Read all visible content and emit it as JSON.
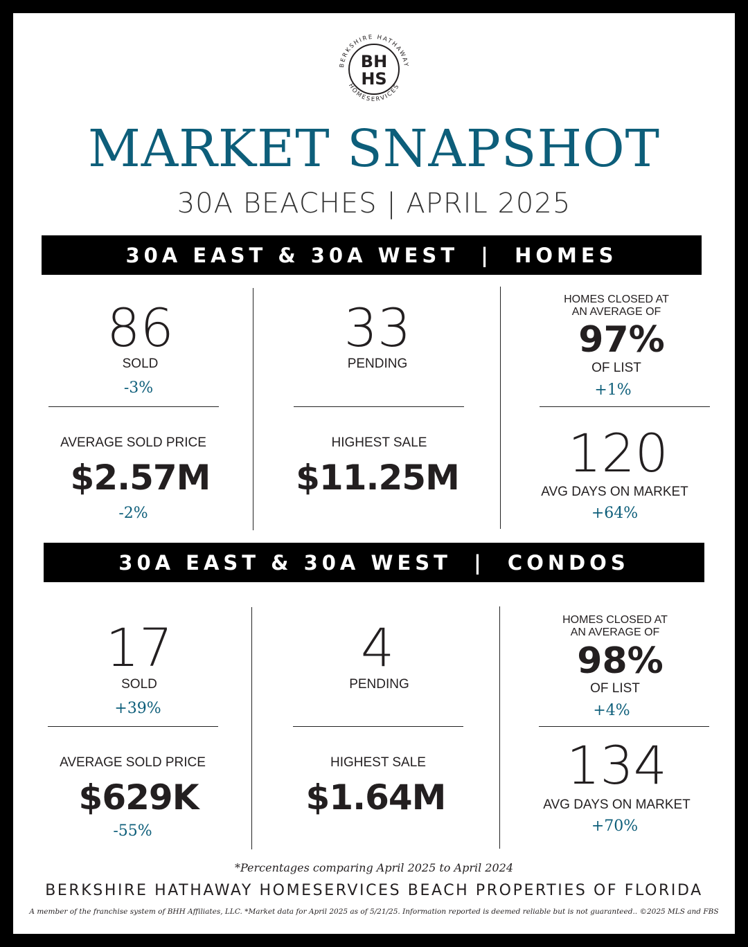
{
  "logo": {
    "mark_line1": "BH",
    "mark_line2": "HS",
    "ring_top": "BERKSHIRE HATHAWAY",
    "ring_bottom": "HOMESERVICES"
  },
  "header": {
    "title": "MARKET SNAPSHOT",
    "subtitle": "30A BEACHES | APRIL 2025"
  },
  "colors": {
    "accent": "#0d5e7a",
    "text": "#231f20",
    "banner": "#000000"
  },
  "homes": {
    "banner": "30A EAST & 30A WEST  |  HOMES",
    "sold": {
      "value": "86",
      "label": "SOLD",
      "change": "-3%"
    },
    "pending": {
      "value": "33",
      "label": "PENDING"
    },
    "list_ratio": {
      "intro_line1": "HOMES CLOSED AT",
      "intro_line2": "AN AVERAGE OF",
      "value": "97%",
      "label": "OF LIST",
      "change": "+1%"
    },
    "avg_price": {
      "label": "AVERAGE SOLD PRICE",
      "value": "$2.57M",
      "change": "-2%"
    },
    "highest": {
      "label": "HIGHEST SALE",
      "value": "$11.25M"
    },
    "dom": {
      "value": "120",
      "label": "AVG DAYS ON MARKET",
      "change": "+64%"
    }
  },
  "condos": {
    "banner": "30A EAST & 30A WEST  |  CONDOS",
    "sold": {
      "value": "17",
      "label": "SOLD",
      "change": "+39%"
    },
    "pending": {
      "value": "4",
      "label": "PENDING"
    },
    "list_ratio": {
      "intro_line1": "HOMES CLOSED AT",
      "intro_line2": "AN AVERAGE OF",
      "value": "98%",
      "label": "OF LIST",
      "change": "+4%"
    },
    "avg_price": {
      "label": "AVERAGE SOLD PRICE",
      "value": "$629K",
      "change": "-55%"
    },
    "highest": {
      "label": "HIGHEST SALE",
      "value": "$1.64M"
    },
    "dom": {
      "value": "134",
      "label": "AVG DAYS ON MARKET",
      "change": "+70%"
    }
  },
  "footer": {
    "footnote": "*Percentages comparing April 2025 to April 2024",
    "company": "BERKSHIRE HATHAWAY HOMESERVICES BEACH PROPERTIES OF FLORIDA",
    "disclaimer": "A member of the franchise system of BHH Affiliates, LLC. *Market data for April 2025 as of 5/21/25. Information reported is deemed reliable but is not guaranteed.. ©2025 MLS and FBS"
  }
}
